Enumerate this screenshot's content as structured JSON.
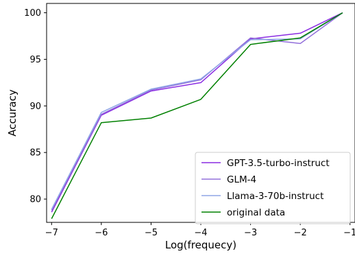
{
  "chart_data": {
    "type": "line",
    "xlabel": "Log(frequecy)",
    "ylabel": "Accuracy",
    "xlim": [
      -7.1,
      -0.9
    ],
    "ylim": [
      77.5,
      101.0
    ],
    "xticks": [
      -7,
      -6,
      -5,
      -4,
      -3,
      -2,
      -1
    ],
    "xtick_labels": [
      "−7",
      "−6",
      "−5",
      "−4",
      "−3",
      "−2",
      "−1"
    ],
    "yticks": [
      80,
      85,
      90,
      95,
      100
    ],
    "ytick_labels": [
      "80",
      "85",
      "90",
      "95",
      "100"
    ],
    "grid": false,
    "legend_position": "lower-right",
    "series": [
      {
        "name": "GPT-3.5-turbo-instruct",
        "color": "#8a2be2",
        "x": [
          -7,
          -6,
          -5,
          -4,
          -3,
          -2,
          -1.15
        ],
        "y": [
          78.6,
          89.0,
          91.6,
          92.5,
          97.2,
          97.8,
          100.0
        ]
      },
      {
        "name": "GLM-4",
        "color": "#9370db",
        "x": [
          -7,
          -6,
          -5,
          -4,
          -3,
          -2,
          -1.15
        ],
        "y": [
          78.8,
          89.1,
          91.7,
          92.8,
          97.3,
          96.7,
          100.0
        ]
      },
      {
        "name": "Llama-3-70b-instruct",
        "color": "#8fa6e6",
        "x": [
          -7,
          -6,
          -5,
          -4,
          -3,
          -2,
          -1.15
        ],
        "y": [
          78.9,
          89.3,
          91.8,
          92.9,
          97.1,
          97.2,
          100.0
        ]
      },
      {
        "name": "original data",
        "color": "#008000",
        "x": [
          -7,
          -6,
          -5,
          -4,
          -3,
          -2,
          -1.15
        ],
        "y": [
          77.9,
          88.2,
          88.7,
          90.7,
          96.6,
          97.3,
          100.0
        ]
      }
    ]
  }
}
